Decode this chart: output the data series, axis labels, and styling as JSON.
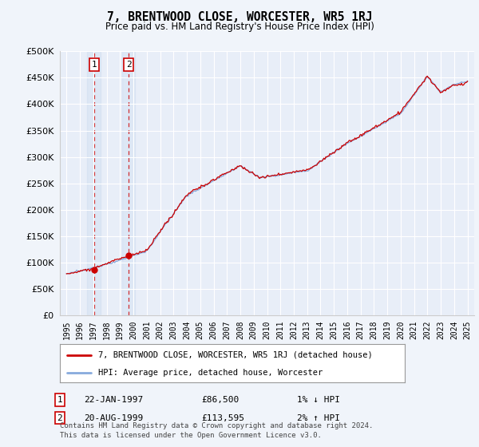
{
  "title": "7, BRENTWOOD CLOSE, WORCESTER, WR5 1RJ",
  "subtitle": "Price paid vs. HM Land Registry's House Price Index (HPI)",
  "legend_line1": "7, BRENTWOOD CLOSE, WORCESTER, WR5 1RJ (detached house)",
  "legend_line2": "HPI: Average price, detached house, Worcester",
  "annotation1_date": "22-JAN-1997",
  "annotation1_price": "£86,500",
  "annotation1_hpi": "1% ↓ HPI",
  "annotation1_year": 1997.06,
  "annotation1_value": 86500,
  "annotation2_date": "20-AUG-1999",
  "annotation2_price": "£113,595",
  "annotation2_hpi": "2% ↑ HPI",
  "annotation2_year": 1999.64,
  "annotation2_value": 113595,
  "price_color": "#cc0000",
  "hpi_color": "#88aadd",
  "background_color": "#f0f4fa",
  "plot_bg": "#e8eef8",
  "footer": "Contains HM Land Registry data © Crown copyright and database right 2024.\nThis data is licensed under the Open Government Licence v3.0.",
  "ylim": [
    0,
    500000
  ],
  "yticks": [
    0,
    50000,
    100000,
    150000,
    200000,
    250000,
    300000,
    350000,
    400000,
    450000,
    500000
  ],
  "xlim_start": 1994.5,
  "xlim_end": 2025.5
}
